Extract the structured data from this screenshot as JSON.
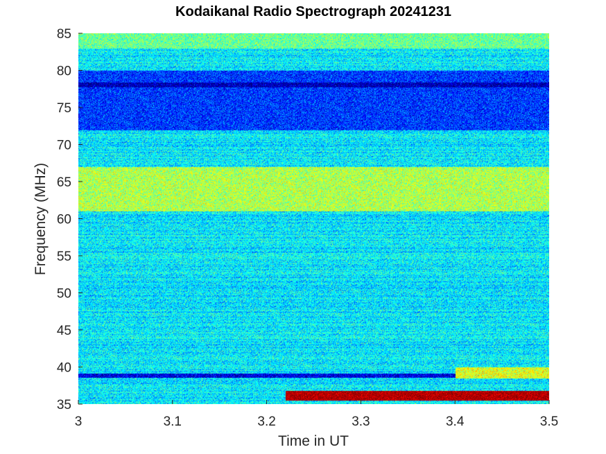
{
  "chart_data": {
    "type": "heatmap",
    "title": "Kodaikanal Radio Spectrograph  20241231",
    "xlabel": "Time in UT",
    "ylabel": "Frequency (MHz)",
    "xlim": [
      3,
      3.5
    ],
    "ylim": [
      35,
      85
    ],
    "x_ticks": [
      "3",
      "3.1",
      "3.2",
      "3.3",
      "3.4",
      "3.5"
    ],
    "y_ticks": [
      "35",
      "40",
      "45",
      "50",
      "55",
      "60",
      "65",
      "70",
      "75",
      "80",
      "85"
    ],
    "colormap": "jet",
    "grid": false,
    "features": [
      {
        "desc": "low-intensity band",
        "freq_range": [
          72,
          80
        ],
        "time_range": [
          3,
          3.5
        ],
        "level": 0.18
      },
      {
        "desc": "narrow dark line",
        "freq_range": [
          77.8,
          78.4
        ],
        "time_range": [
          3,
          3.5
        ],
        "level": 0.05
      },
      {
        "desc": "enhanced band",
        "freq_range": [
          61,
          67
        ],
        "time_range": [
          3,
          3.5
        ],
        "level": 0.55
      },
      {
        "desc": "enhanced band",
        "freq_range": [
          83,
          85
        ],
        "time_range": [
          3,
          3.5
        ],
        "level": 0.48
      },
      {
        "desc": "dark line",
        "freq_range": [
          38.6,
          39.2
        ],
        "time_range": [
          3,
          3.5
        ],
        "level": 0.1
      },
      {
        "desc": "intense emission band",
        "freq_range": [
          35.5,
          36.8
        ],
        "time_range": [
          3.22,
          3.5
        ],
        "level": 0.95
      },
      {
        "desc": "weak emission",
        "freq_range": [
          38.5,
          40
        ],
        "time_range": [
          3.4,
          3.5
        ],
        "level": 0.6
      }
    ]
  }
}
